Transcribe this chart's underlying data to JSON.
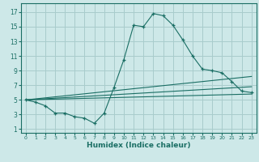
{
  "xlabel": "Humidex (Indice chaleur)",
  "bg_color": "#cde8e8",
  "grid_color": "#a8cccc",
  "line_color": "#1a6e64",
  "x_ticks": [
    0,
    1,
    2,
    3,
    4,
    5,
    6,
    7,
    8,
    9,
    10,
    11,
    12,
    13,
    14,
    15,
    16,
    17,
    18,
    19,
    20,
    21,
    22,
    23
  ],
  "y_ticks": [
    1,
    3,
    5,
    7,
    9,
    11,
    13,
    15,
    17
  ],
  "xlim": [
    -0.5,
    23.5
  ],
  "ylim": [
    0.5,
    18.2
  ],
  "series": [
    {
      "x": [
        0,
        1,
        2,
        3,
        4,
        5,
        6,
        7,
        8,
        9,
        10,
        11,
        12,
        13,
        14,
        15,
        16,
        17,
        18,
        19,
        20,
        21,
        22,
        23
      ],
      "y": [
        5.0,
        4.7,
        4.2,
        3.2,
        3.2,
        2.7,
        2.5,
        1.8,
        3.2,
        6.7,
        10.5,
        15.2,
        15.0,
        16.8,
        16.5,
        15.2,
        13.2,
        11.0,
        9.2,
        9.0,
        8.7,
        7.5,
        6.2,
        6.0
      ],
      "marker": "+"
    },
    {
      "x": [
        0,
        23
      ],
      "y": [
        5.0,
        5.8
      ],
      "marker": null
    },
    {
      "x": [
        0,
        23
      ],
      "y": [
        5.0,
        6.8
      ],
      "marker": null
    },
    {
      "x": [
        0,
        23
      ],
      "y": [
        5.0,
        8.2
      ],
      "marker": null
    }
  ]
}
